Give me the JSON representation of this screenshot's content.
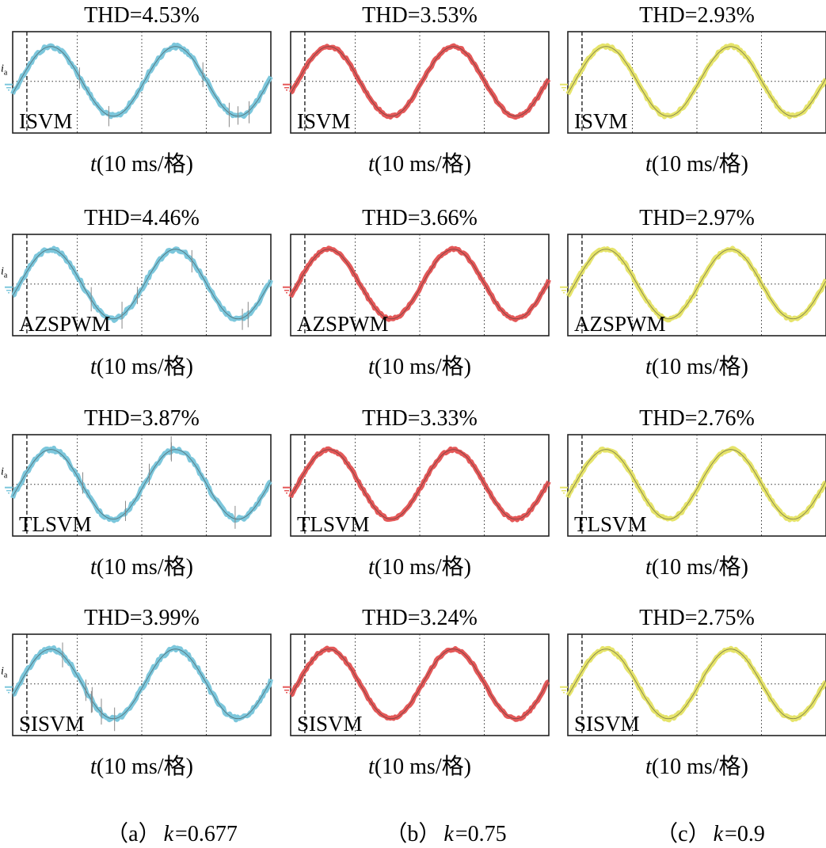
{
  "chart_data": [
    {
      "type": "line",
      "column": "a",
      "row": 0,
      "title": "THD=4.53%",
      "method": "ISVM",
      "xlabel_var": "t",
      "xlabel_rest": "(10 ms/格)",
      "signal_label": "i",
      "signal_sub": "a",
      "x": [
        0,
        10,
        20,
        30,
        40
      ],
      "x_unit": "ms",
      "divisions": 4,
      "waveform": "sinusoidal phase current",
      "color": "#7cc7dc"
    },
    {
      "type": "line",
      "column": "b",
      "row": 0,
      "title": "THD=3.53%",
      "method": "ISVM",
      "xlabel_var": "t",
      "xlabel_rest": "(10 ms/格)",
      "signal_label": "",
      "signal_sub": "",
      "x": [
        0,
        10,
        20,
        30,
        40
      ],
      "x_unit": "ms",
      "divisions": 4,
      "waveform": "sinusoidal phase current",
      "color": "#e45858"
    },
    {
      "type": "line",
      "column": "c",
      "row": 0,
      "title": "THD=2.93%",
      "method": "ISVM",
      "xlabel_var": "t",
      "xlabel_rest": "(10 ms/格)",
      "signal_label": "",
      "signal_sub": "",
      "x": [
        0,
        10,
        20,
        30,
        40
      ],
      "x_unit": "ms",
      "divisions": 4,
      "waveform": "sinusoidal phase current",
      "color": "#e6e46a"
    },
    {
      "type": "line",
      "column": "a",
      "row": 1,
      "title": "THD=4.46%",
      "method": "AZSPWM",
      "xlabel_var": "t",
      "xlabel_rest": "(10 ms/格)",
      "signal_label": "i",
      "signal_sub": "a",
      "x": [
        0,
        10,
        20,
        30,
        40
      ],
      "x_unit": "ms",
      "divisions": 4,
      "waveform": "sinusoidal phase current",
      "color": "#7cc7dc"
    },
    {
      "type": "line",
      "column": "b",
      "row": 1,
      "title": "THD=3.66%",
      "method": "AZSPWM",
      "xlabel_var": "t",
      "xlabel_rest": "(10 ms/格)",
      "signal_label": "",
      "signal_sub": "",
      "x": [
        0,
        10,
        20,
        30,
        40
      ],
      "x_unit": "ms",
      "divisions": 4,
      "waveform": "sinusoidal phase current",
      "color": "#e45858"
    },
    {
      "type": "line",
      "column": "c",
      "row": 1,
      "title": "THD=2.97%",
      "method": "AZSPWM",
      "xlabel_var": "t",
      "xlabel_rest": "(10 ms/格)",
      "signal_label": "",
      "signal_sub": "",
      "x": [
        0,
        10,
        20,
        30,
        40
      ],
      "x_unit": "ms",
      "divisions": 4,
      "waveform": "sinusoidal phase current",
      "color": "#e6e46a"
    },
    {
      "type": "line",
      "column": "a",
      "row": 2,
      "title": "THD=3.87%",
      "method": "TLSVM",
      "xlabel_var": "t",
      "xlabel_rest": "(10 ms/格)",
      "signal_label": "i",
      "signal_sub": "a",
      "x": [
        0,
        10,
        20,
        30,
        40
      ],
      "x_unit": "ms",
      "divisions": 4,
      "waveform": "sinusoidal phase current",
      "color": "#7cc7dc"
    },
    {
      "type": "line",
      "column": "b",
      "row": 2,
      "title": "THD=3.33%",
      "method": "TLSVM",
      "xlabel_var": "t",
      "xlabel_rest": "(10 ms/格)",
      "signal_label": "",
      "signal_sub": "",
      "x": [
        0,
        10,
        20,
        30,
        40
      ],
      "x_unit": "ms",
      "divisions": 4,
      "waveform": "sinusoidal phase current",
      "color": "#e45858"
    },
    {
      "type": "line",
      "column": "c",
      "row": 2,
      "title": "THD=2.76%",
      "method": "TLSVM",
      "xlabel_var": "t",
      "xlabel_rest": "(10 ms/格)",
      "signal_label": "",
      "signal_sub": "",
      "x": [
        0,
        10,
        20,
        30,
        40
      ],
      "x_unit": "ms",
      "divisions": 4,
      "waveform": "sinusoidal phase current",
      "color": "#e6e46a"
    },
    {
      "type": "line",
      "column": "a",
      "row": 3,
      "title": "THD=3.99%",
      "method": "SISVM",
      "xlabel_var": "t",
      "xlabel_rest": "(10 ms/格)",
      "signal_label": "i",
      "signal_sub": "a",
      "x": [
        0,
        10,
        20,
        30,
        40
      ],
      "x_unit": "ms",
      "divisions": 4,
      "waveform": "sinusoidal phase current",
      "color": "#7cc7dc"
    },
    {
      "type": "line",
      "column": "b",
      "row": 3,
      "title": "THD=3.24%",
      "method": "SISVM",
      "xlabel_var": "t",
      "xlabel_rest": "(10 ms/格)",
      "signal_label": "",
      "signal_sub": "",
      "x": [
        0,
        10,
        20,
        30,
        40
      ],
      "x_unit": "ms",
      "divisions": 4,
      "waveform": "sinusoidal phase current",
      "color": "#e45858"
    },
    {
      "type": "line",
      "column": "c",
      "row": 3,
      "title": "THD=2.75%",
      "method": "SISVM",
      "xlabel_var": "t",
      "xlabel_rest": "(10 ms/格)",
      "signal_label": "",
      "signal_sub": "",
      "x": [
        0,
        10,
        20,
        30,
        40
      ],
      "x_unit": "ms",
      "divisions": 4,
      "waveform": "sinusoidal phase current",
      "color": "#e6e46a"
    }
  ],
  "captions": [
    {
      "paren_open": "（a）",
      "var": "k",
      "value": "=0.677"
    },
    {
      "paren_open": "（b）",
      "var": "k",
      "value": "=0.75"
    },
    {
      "paren_open": "（c）",
      "var": "k",
      "value": "=0.9"
    }
  ]
}
